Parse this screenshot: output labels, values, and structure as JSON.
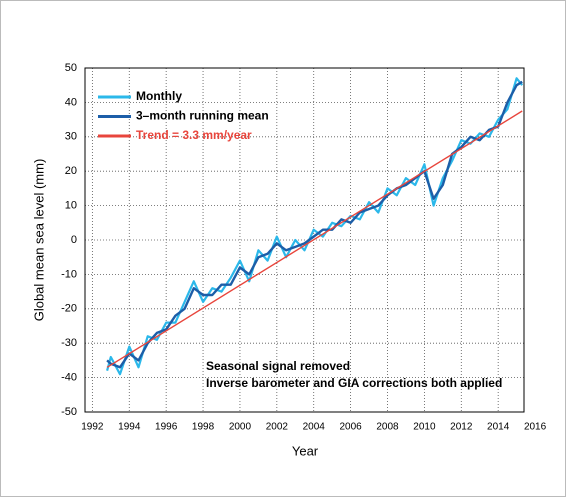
{
  "chart_data": {
    "type": "line",
    "ylabel": "Global mean sea level (mm)",
    "xlabel": "Year",
    "xlim": [
      1991.6,
      2015.4
    ],
    "ylim": [
      -50,
      50
    ],
    "xticks": [
      1992,
      1994,
      1996,
      1998,
      2000,
      2002,
      2004,
      2006,
      2008,
      2010,
      2012,
      2014,
      2016
    ],
    "yticks": [
      -50,
      -40,
      -30,
      -20,
      -10,
      0,
      10,
      20,
      30,
      40,
      50
    ],
    "grid": true,
    "legend": "upper left",
    "annotations": [
      "Seasonal signal removed",
      "Inverse barometer and GIA corrections both applied"
    ],
    "series": [
      {
        "name": "Monthly",
        "color": "#2bb8ea",
        "x": [
          1992.8,
          1993,
          1993.5,
          1994,
          1994.5,
          1995,
          1995.5,
          1996,
          1996.5,
          1997,
          1997.5,
          1998,
          1998.5,
          1999,
          1999.5,
          2000,
          2000.5,
          2001,
          2001.5,
          2002,
          2002.5,
          2003,
          2003.5,
          2004,
          2004.5,
          2005,
          2005.5,
          2006,
          2006.5,
          2007,
          2007.5,
          2008,
          2008.5,
          2009,
          2009.5,
          2010,
          2010.5,
          2011,
          2011.5,
          2012,
          2012.5,
          2013,
          2013.5,
          2014,
          2014.5,
          2015,
          2015.3
        ],
        "values": [
          -38,
          -34,
          -39,
          -31,
          -37,
          -28,
          -29,
          -24,
          -24,
          -18,
          -12,
          -18,
          -14,
          -15,
          -11,
          -6,
          -12,
          -3,
          -6,
          1,
          -5,
          0,
          -3,
          3,
          1,
          5,
          4,
          7,
          6,
          11,
          8,
          15,
          13,
          18,
          16,
          22,
          10,
          18,
          23,
          29,
          28,
          31,
          30,
          35,
          38,
          47,
          45
        ]
      },
      {
        "name": "3–month running mean",
        "color": "#1c5ea8",
        "x": [
          1992.8,
          1993,
          1993.5,
          1994,
          1994.5,
          1995,
          1995.5,
          1996,
          1996.5,
          1997,
          1997.5,
          1998,
          1998.5,
          1999,
          1999.5,
          2000,
          2000.5,
          2001,
          2001.5,
          2002,
          2002.5,
          2003,
          2003.5,
          2004,
          2004.5,
          2005,
          2005.5,
          2006,
          2006.5,
          2007,
          2007.5,
          2008,
          2008.5,
          2009,
          2009.5,
          2010,
          2010.5,
          2011,
          2011.5,
          2012,
          2012.5,
          2013,
          2013.5,
          2014,
          2014.5,
          2015,
          2015.3
        ],
        "values": [
          -35,
          -36,
          -37,
          -33,
          -35,
          -30,
          -27,
          -26,
          -22,
          -20,
          -14,
          -16,
          -16,
          -13,
          -13,
          -8,
          -10,
          -5,
          -4,
          -1,
          -3,
          -2,
          -1,
          1,
          3,
          3,
          6,
          5,
          8,
          9,
          10,
          13,
          15,
          16,
          18,
          20,
          12,
          16,
          25,
          27,
          30,
          29,
          32,
          33,
          40,
          45,
          46
        ]
      },
      {
        "name": "Trend = 3.3 mm/year",
        "color": "#e8453c",
        "label_color": "#e8453c",
        "x": [
          1992.8,
          2015.3
        ],
        "values": [
          -37,
          37.5
        ]
      }
    ]
  }
}
